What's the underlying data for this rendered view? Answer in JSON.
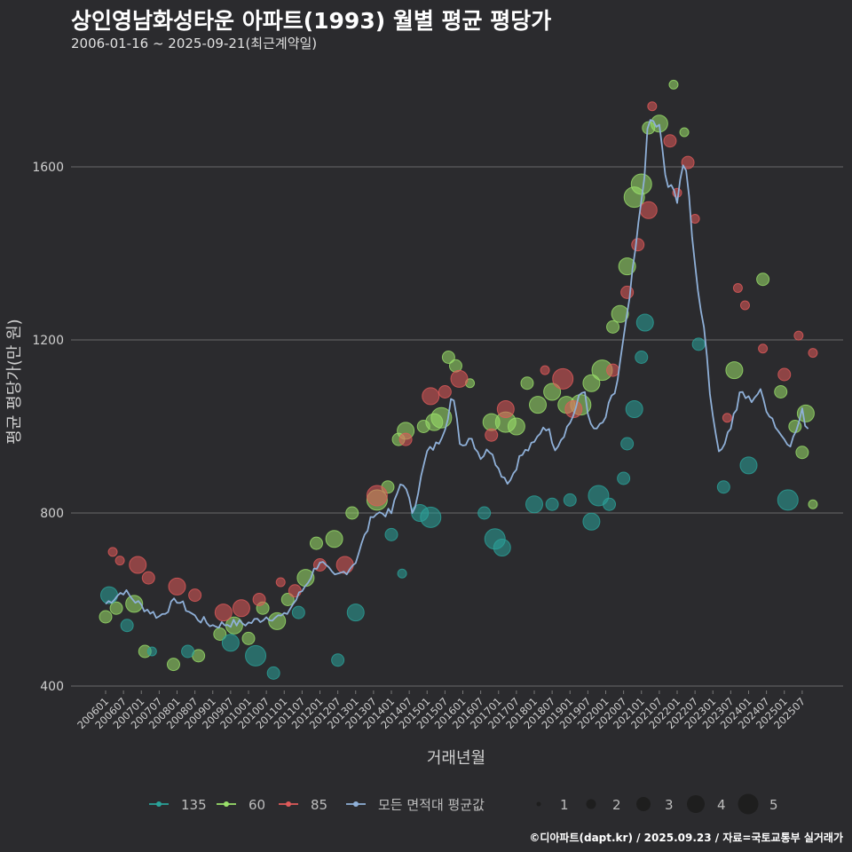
{
  "header": {
    "title": "상인영남화성타운 아파트(1993) 월별 평균 평당가",
    "subtitle": "2006-01-16 ~ 2025-09-21(최근계약일)"
  },
  "footer": {
    "credit": "©디아파트(dapt.kr) / 2025.09.23 / 자료=국토교통부 실거래가"
  },
  "colors": {
    "background": "#2b2b2e",
    "grid": "#6a6a6a",
    "series_135": "#2aa39a",
    "series_60": "#9ae06a",
    "series_85": "#e05a5a",
    "series_all": "#8fb0d8",
    "size_legend": "#1e1e1e"
  },
  "chart_data": {
    "type": "line+scatter",
    "title": "상인영남화성타운 아파트(1993) 월별 평균 평당가",
    "xlabel": "거래년월",
    "ylabel": "평균 평당가(만 원)",
    "ylim": [
      370,
      1840
    ],
    "yticks": [
      400,
      800,
      1200,
      1600
    ],
    "grid": true,
    "legend_position": "bottom",
    "x_tick_labels": [
      "200601",
      "200607",
      "200701",
      "200707",
      "200801",
      "200807",
      "200901",
      "200907",
      "201001",
      "201007",
      "201101",
      "201107",
      "201201",
      "201207",
      "201301",
      "201307",
      "201401",
      "201407",
      "201501",
      "201507",
      "201601",
      "201607",
      "201701",
      "201707",
      "201801",
      "201807",
      "201901",
      "201907",
      "202001",
      "202007",
      "202101",
      "202107",
      "202201",
      "202207",
      "202301",
      "202307",
      "202401",
      "202407",
      "202501",
      "202507"
    ],
    "legend": {
      "color_items": [
        {
          "name": "135",
          "color": "#2aa39a"
        },
        {
          "name": "60",
          "color": "#9ae06a"
        },
        {
          "name": "85",
          "color": "#e05a5a"
        },
        {
          "name": "모든 면적대 평균값",
          "color": "#8fb0d8"
        }
      ],
      "size_items": [
        "1",
        "2",
        "3",
        "4",
        "5"
      ]
    },
    "avg_line_anchors": [
      [
        2006.0,
        590
      ],
      [
        2006.5,
        620
      ],
      [
        2007.0,
        585
      ],
      [
        2007.5,
        560
      ],
      [
        2008.0,
        600
      ],
      [
        2008.5,
        560
      ],
      [
        2009.0,
        540
      ],
      [
        2009.5,
        545
      ],
      [
        2010.0,
        545
      ],
      [
        2010.5,
        560
      ],
      [
        2011.0,
        560
      ],
      [
        2011.5,
        620
      ],
      [
        2012.0,
        690
      ],
      [
        2012.4,
        650
      ],
      [
        2012.8,
        670
      ],
      [
        2013.0,
        690
      ],
      [
        2013.5,
        800
      ],
      [
        2014.0,
        800
      ],
      [
        2014.3,
        880
      ],
      [
        2014.6,
        800
      ],
      [
        2015.0,
        940
      ],
      [
        2015.3,
        960
      ],
      [
        2015.5,
        1000
      ],
      [
        2015.7,
        1075
      ],
      [
        2015.95,
        950
      ],
      [
        2016.2,
        980
      ],
      [
        2016.5,
        930
      ],
      [
        2016.8,
        950
      ],
      [
        2017.0,
        900
      ],
      [
        2017.3,
        870
      ],
      [
        2017.6,
        930
      ],
      [
        2018.0,
        960
      ],
      [
        2018.3,
        1010
      ],
      [
        2018.6,
        950
      ],
      [
        2019.0,
        1010
      ],
      [
        2019.4,
        1090
      ],
      [
        2019.6,
        990
      ],
      [
        2019.9,
        1000
      ],
      [
        2020.3,
        1090
      ],
      [
        2020.6,
        1250
      ],
      [
        2020.9,
        1450
      ],
      [
        2021.1,
        1600
      ],
      [
        2021.2,
        1710
      ],
      [
        2021.5,
        1690
      ],
      [
        2021.7,
        1560
      ],
      [
        2022.0,
        1530
      ],
      [
        2022.15,
        1610
      ],
      [
        2022.3,
        1560
      ],
      [
        2022.5,
        1370
      ],
      [
        2022.8,
        1200
      ],
      [
        2023.0,
        1010
      ],
      [
        2023.2,
        940
      ],
      [
        2023.5,
        1000
      ],
      [
        2023.8,
        1080
      ],
      [
        2024.0,
        1060
      ],
      [
        2024.3,
        1080
      ],
      [
        2024.6,
        1030
      ],
      [
        2024.9,
        980
      ],
      [
        2025.2,
        960
      ],
      [
        2025.5,
        1030
      ],
      [
        2025.7,
        990
      ]
    ],
    "scatter_points": {
      "135": [
        [
          2006.1,
          610,
          3
        ],
        [
          2006.6,
          540,
          2
        ],
        [
          2007.3,
          480,
          1
        ],
        [
          2008.3,
          480,
          2
        ],
        [
          2009.5,
          500,
          3
        ],
        [
          2010.2,
          470,
          4
        ],
        [
          2010.7,
          430,
          2
        ],
        [
          2011.4,
          570,
          2
        ],
        [
          2012.5,
          460,
          2
        ],
        [
          2013.0,
          570,
          3
        ],
        [
          2014.0,
          750,
          2
        ],
        [
          2014.3,
          660,
          1
        ],
        [
          2014.8,
          800,
          3
        ],
        [
          2015.1,
          790,
          4
        ],
        [
          2016.6,
          800,
          2
        ],
        [
          2016.9,
          740,
          4
        ],
        [
          2017.1,
          720,
          3
        ],
        [
          2018.0,
          820,
          3
        ],
        [
          2018.5,
          820,
          2
        ],
        [
          2019.0,
          830,
          2
        ],
        [
          2019.6,
          780,
          3
        ],
        [
          2019.8,
          840,
          4
        ],
        [
          2020.1,
          820,
          2
        ],
        [
          2020.5,
          880,
          2
        ],
        [
          2020.6,
          960,
          2
        ],
        [
          2020.8,
          1040,
          3
        ],
        [
          2021.0,
          1160,
          2
        ],
        [
          2021.1,
          1240,
          3
        ],
        [
          2022.6,
          1190,
          2
        ],
        [
          2023.3,
          860,
          2
        ],
        [
          2024.0,
          910,
          3
        ],
        [
          2025.1,
          830,
          4
        ]
      ],
      "60": [
        [
          2006.0,
          560,
          2
        ],
        [
          2006.3,
          580,
          2
        ],
        [
          2006.8,
          590,
          3
        ],
        [
          2007.1,
          480,
          2
        ],
        [
          2007.9,
          450,
          2
        ],
        [
          2008.6,
          470,
          2
        ],
        [
          2009.2,
          520,
          2
        ],
        [
          2009.6,
          540,
          3
        ],
        [
          2010.0,
          510,
          2
        ],
        [
          2010.4,
          580,
          2
        ],
        [
          2010.8,
          550,
          3
        ],
        [
          2011.1,
          600,
          2
        ],
        [
          2011.6,
          650,
          3
        ],
        [
          2011.9,
          730,
          2
        ],
        [
          2012.4,
          740,
          3
        ],
        [
          2012.9,
          800,
          2
        ],
        [
          2013.6,
          830,
          4
        ],
        [
          2013.9,
          860,
          2
        ],
        [
          2014.2,
          970,
          2
        ],
        [
          2014.4,
          990,
          3
        ],
        [
          2014.9,
          1000,
          2
        ],
        [
          2015.2,
          1010,
          3
        ],
        [
          2015.4,
          1020,
          4
        ],
        [
          2015.6,
          1160,
          2
        ],
        [
          2015.8,
          1140,
          2
        ],
        [
          2016.2,
          1100,
          1
        ],
        [
          2016.8,
          1010,
          3
        ],
        [
          2017.2,
          1010,
          4
        ],
        [
          2017.5,
          1000,
          3
        ],
        [
          2017.8,
          1100,
          2
        ],
        [
          2018.1,
          1050,
          3
        ],
        [
          2018.5,
          1080,
          3
        ],
        [
          2018.9,
          1050,
          3
        ],
        [
          2019.3,
          1050,
          4
        ],
        [
          2019.6,
          1100,
          3
        ],
        [
          2019.9,
          1130,
          4
        ],
        [
          2020.2,
          1230,
          2
        ],
        [
          2020.4,
          1260,
          3
        ],
        [
          2020.6,
          1370,
          3
        ],
        [
          2020.8,
          1530,
          4
        ],
        [
          2021.0,
          1560,
          4
        ],
        [
          2021.2,
          1690,
          2
        ],
        [
          2021.5,
          1700,
          3
        ],
        [
          2021.9,
          1790,
          1
        ],
        [
          2022.2,
          1680,
          1
        ],
        [
          2023.6,
          1130,
          3
        ],
        [
          2024.4,
          1340,
          2
        ],
        [
          2024.9,
          1080,
          2
        ],
        [
          2025.3,
          1000,
          2
        ],
        [
          2025.5,
          940,
          2
        ],
        [
          2025.6,
          1030,
          3
        ],
        [
          2025.8,
          820,
          1
        ]
      ],
      "85": [
        [
          2006.2,
          710,
          1
        ],
        [
          2006.4,
          690,
          1
        ],
        [
          2006.9,
          680,
          3
        ],
        [
          2007.2,
          650,
          2
        ],
        [
          2008.0,
          630,
          3
        ],
        [
          2008.5,
          610,
          2
        ],
        [
          2009.3,
          570,
          3
        ],
        [
          2009.8,
          580,
          3
        ],
        [
          2010.3,
          600,
          2
        ],
        [
          2010.9,
          640,
          1
        ],
        [
          2011.3,
          620,
          2
        ],
        [
          2012.0,
          680,
          2
        ],
        [
          2012.7,
          680,
          3
        ],
        [
          2013.6,
          840,
          4
        ],
        [
          2014.4,
          970,
          2
        ],
        [
          2015.1,
          1070,
          3
        ],
        [
          2015.5,
          1080,
          2
        ],
        [
          2015.9,
          1110,
          3
        ],
        [
          2016.8,
          980,
          2
        ],
        [
          2017.2,
          1040,
          3
        ],
        [
          2018.3,
          1130,
          1
        ],
        [
          2018.8,
          1110,
          4
        ],
        [
          2019.1,
          1040,
          3
        ],
        [
          2020.2,
          1130,
          2
        ],
        [
          2020.6,
          1310,
          2
        ],
        [
          2020.9,
          1420,
          2
        ],
        [
          2021.2,
          1500,
          3
        ],
        [
          2021.3,
          1740,
          1
        ],
        [
          2021.8,
          1660,
          2
        ],
        [
          2022.0,
          1540,
          1
        ],
        [
          2022.3,
          1610,
          2
        ],
        [
          2022.5,
          1480,
          1
        ],
        [
          2023.4,
          1020,
          1
        ],
        [
          2023.7,
          1320,
          1
        ],
        [
          2023.9,
          1280,
          1
        ],
        [
          2024.4,
          1180,
          1
        ],
        [
          2025.0,
          1120,
          2
        ],
        [
          2025.4,
          1210,
          1
        ],
        [
          2025.8,
          1170,
          1
        ]
      ]
    }
  }
}
